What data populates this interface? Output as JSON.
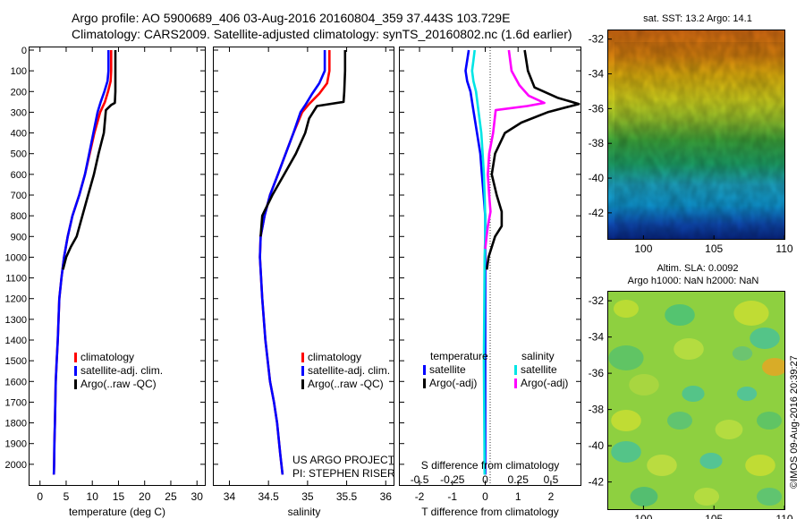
{
  "header": {
    "line1": "Argo profile: AO 5900689_406 03-Aug-2016 20160804_359 37.443S 103.729E",
    "line2": "Climatology: CARS2009. Satellite-adjusted climatology: synTS_20160802.nc (1.6d earlier)"
  },
  "footer_stamp": "©IMOS 09-Aug-2016 20:39:27",
  "colors": {
    "climatology": "#ff0000",
    "satellite": "#0000ff",
    "argo": "#000000",
    "sal_satellite": "#00e5e5",
    "sal_argo": "#ff00ff"
  },
  "chart_data": [
    {
      "type": "line",
      "name": "temperature-profile",
      "xlabel": "temperature (deg C)",
      "ylabel": "",
      "xlim": [
        -2,
        31.5
      ],
      "ylim": [
        2100,
        0
      ],
      "xticks": [
        0,
        5,
        10,
        15,
        20,
        25,
        30
      ],
      "yticks": [
        0,
        100,
        200,
        300,
        400,
        500,
        600,
        700,
        800,
        900,
        1000,
        1100,
        1200,
        1300,
        1400,
        1500,
        1600,
        1700,
        1800,
        1900,
        2000
      ],
      "series": [
        {
          "name": "climatology",
          "color": "#ff0000",
          "x": [
            13.6,
            13.6,
            13.5,
            13.0,
            12.4,
            11.5,
            10.4,
            9.5,
            8.6,
            7.5,
            6.2,
            5.3,
            4.6,
            4.1,
            3.7,
            3.4,
            3.2,
            3.0,
            2.85,
            2.75,
            2.7,
            2.65
          ],
          "y": [
            0,
            100,
            150,
            200,
            250,
            300,
            400,
            500,
            600,
            700,
            800,
            900,
            1000,
            1100,
            1200,
            1400,
            1500,
            1600,
            1800,
            1900,
            2000,
            2050
          ]
        },
        {
          "name": "satellite-adj. clim.",
          "color": "#0000ff",
          "x": [
            13.1,
            13.1,
            12.9,
            12.3,
            11.6,
            11.0,
            10.2,
            9.4,
            8.6,
            7.5,
            6.2,
            5.3,
            4.6,
            4.1,
            3.7,
            3.4,
            3.2,
            3.0,
            2.85,
            2.75,
            2.7,
            2.65
          ],
          "y": [
            0,
            100,
            150,
            200,
            250,
            300,
            400,
            500,
            600,
            700,
            800,
            900,
            1000,
            1100,
            1200,
            1400,
            1500,
            1600,
            1800,
            1900,
            2000,
            2050
          ]
        },
        {
          "name": "Argo(..raw -QC)",
          "color": "#000000",
          "x": [
            14.4,
            14.4,
            14.4,
            14.3,
            13.6,
            12.6,
            12.2,
            11.2,
            10.3,
            9.2,
            8.1,
            7.0,
            5.9,
            5.0,
            4.4
          ],
          "y": [
            0,
            100,
            200,
            255,
            265,
            290,
            400,
            500,
            600,
            700,
            800,
            900,
            950,
            1000,
            1060
          ]
        }
      ],
      "legend": [
        "climatology",
        "satellite-adj. clim.",
        "Argo(..raw -QC)"
      ],
      "legend_position": "bottom-right"
    },
    {
      "type": "line",
      "name": "salinity-profile",
      "xlabel": "salinity",
      "xlim": [
        33.8,
        36.1
      ],
      "ylim": [
        2100,
        0
      ],
      "xticks": [
        34,
        34.5,
        35,
        35.5,
        36
      ],
      "series": [
        {
          "name": "climatology",
          "color": "#ff0000",
          "x": [
            35.28,
            35.28,
            35.25,
            35.15,
            35.02,
            34.93,
            34.82,
            34.72,
            34.62,
            34.52,
            34.45,
            34.4,
            34.39,
            34.42,
            34.46,
            34.52,
            34.57,
            34.61,
            34.65,
            34.68
          ],
          "y": [
            0,
            100,
            160,
            210,
            260,
            300,
            400,
            500,
            600,
            700,
            800,
            900,
            1000,
            1200,
            1400,
            1600,
            1700,
            1800,
            1950,
            2050
          ]
        },
        {
          "name": "satellite-adj. clim.",
          "color": "#0000ff",
          "x": [
            35.22,
            35.22,
            35.15,
            35.06,
            34.98,
            34.91,
            34.82,
            34.72,
            34.62,
            34.52,
            34.45,
            34.4,
            34.39,
            34.42,
            34.46,
            34.52,
            34.57,
            34.61,
            34.65,
            34.68
          ],
          "y": [
            0,
            100,
            160,
            210,
            260,
            300,
            400,
            500,
            600,
            700,
            800,
            900,
            1000,
            1200,
            1400,
            1600,
            1700,
            1800,
            1950,
            2050
          ]
        },
        {
          "name": "Argo(..raw -QC)",
          "color": "#000000",
          "x": [
            35.48,
            35.48,
            35.47,
            35.46,
            35.12,
            35.02,
            34.97,
            34.85,
            34.7,
            34.55,
            34.42,
            34.4
          ],
          "y": [
            0,
            100,
            200,
            250,
            270,
            330,
            400,
            500,
            600,
            700,
            800,
            900
          ]
        }
      ],
      "legend": [
        "climatology",
        "satellite-adj. clim.",
        "Argo(..raw -QC)"
      ],
      "annotation": [
        "US ARGO PROJECT",
        "PI: STEPHEN RISER"
      ]
    },
    {
      "type": "line",
      "name": "difference-profile",
      "xlabel": "T difference from climatology",
      "x2label": "S difference from climatology",
      "xlim": [
        -2.6,
        2.9
      ],
      "x2lim": [
        -0.65,
        0.725
      ],
      "ylim": [
        2100,
        0
      ],
      "xticks": [
        -2,
        -1,
        0,
        1,
        2
      ],
      "x2ticks": [
        "-0.5",
        "-0.25",
        "0",
        "0.25",
        "0.5"
      ],
      "x2tick_values": [
        -0.5,
        -0.25,
        0,
        0.25,
        0.5
      ],
      "series": [
        {
          "name": "temperature satellite",
          "color": "#0000ff",
          "x": [
            -0.5,
            -0.55,
            -0.6,
            -0.55,
            -0.45,
            -0.35,
            -0.25,
            -0.15,
            -0.1,
            -0.05,
            0,
            0,
            0,
            0,
            0
          ],
          "y": [
            0,
            50,
            100,
            150,
            200,
            300,
            400,
            500,
            600,
            700,
            800,
            900,
            1000,
            1500,
            2050
          ]
        },
        {
          "name": "temperature Argo(-adj)",
          "color": "#000000",
          "x": [
            1.2,
            1.3,
            1.5,
            2.2,
            2.85,
            1.9,
            1.1,
            0.6,
            0.3,
            0.2,
            0.35,
            0.5,
            0.5,
            0.3,
            0.1,
            0.05
          ],
          "y": [
            0,
            100,
            180,
            230,
            260,
            300,
            350,
            400,
            500,
            600,
            700,
            780,
            850,
            900,
            1000,
            1060
          ]
        },
        {
          "name": "salinity satellite",
          "color": "#00e5e5",
          "x": [
            -0.08,
            -0.09,
            -0.1,
            -0.09,
            -0.07,
            -0.05,
            -0.03,
            -0.02,
            -0.01,
            -0.005,
            0,
            0,
            -0.005,
            -0.01,
            -0.005
          ],
          "y": [
            0,
            50,
            100,
            150,
            200,
            300,
            400,
            500,
            600,
            700,
            800,
            900,
            1000,
            1500,
            2050
          ]
        },
        {
          "name": "salinity Argo(-adj)",
          "color": "#ff00ff",
          "x": [
            0.18,
            0.2,
            0.26,
            0.33,
            0.45,
            0.32,
            0.08,
            0.06,
            0.03,
            0.02,
            0.03,
            0.04,
            0.02,
            0.01,
            0.0
          ],
          "y": [
            0,
            100,
            170,
            220,
            255,
            270,
            290,
            400,
            500,
            600,
            700,
            780,
            850,
            900,
            960
          ]
        }
      ],
      "legend_headers": [
        "temperature",
        "salinity"
      ],
      "legend": [
        "satellite",
        "Argo(-adj)",
        "satellite",
        "Argo(-adj)"
      ]
    },
    {
      "type": "heatmap",
      "name": "sat-sst-map",
      "title": "sat. SST: 13.2  Argo: 14.1",
      "xticks": [
        100,
        105,
        110
      ],
      "yticks": [
        -32,
        -34,
        -36,
        -38,
        -40,
        -42
      ],
      "xlim": [
        97.5,
        110
      ],
      "ylim": [
        -43.5,
        -31.5
      ],
      "description_bands": [
        "-32:orange",
        "-34:yellow",
        "-36:yellow-green",
        "-38:green",
        "-40:cyan",
        "-42:blue"
      ]
    },
    {
      "type": "heatmap",
      "name": "altim-sla-map",
      "title": "Altim. SLA: 0.0092",
      "subtitle": "Argo h1000: NaN  h2000: NaN",
      "xticks": [
        100,
        105,
        110
      ],
      "yticks": [
        -32,
        -34,
        -36,
        -38,
        -40,
        -42
      ],
      "xlim": [
        97.5,
        110
      ],
      "ylim": [
        -43.5,
        -31.5
      ]
    }
  ]
}
